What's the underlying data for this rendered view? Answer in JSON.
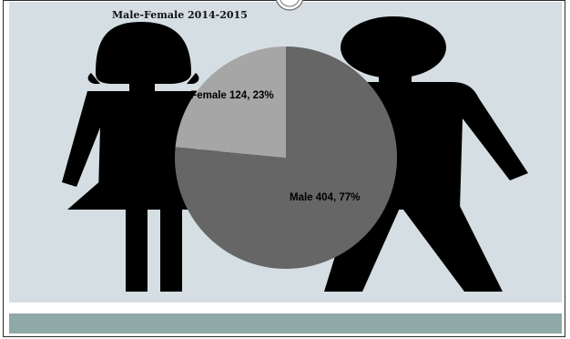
{
  "chart_data": {
    "type": "pie",
    "title": "Male-Female 2014-2015",
    "slices": [
      {
        "label": "Male",
        "value": 404,
        "percent": 77,
        "display": "Male 404, 77%",
        "color": "#666666"
      },
      {
        "label": "Female",
        "value": 124,
        "percent": 23,
        "display": "Female 124, 23%",
        "color": "#a6a6a6"
      }
    ],
    "legend": "none",
    "background_icons": [
      "female-silhouette-icon",
      "male-silhouette-icon"
    ]
  },
  "colors": {
    "frame_border": "#2c2c2c",
    "panel": "#d5dfe3",
    "band": "#8fa9a7",
    "silhouette": "#000000"
  }
}
